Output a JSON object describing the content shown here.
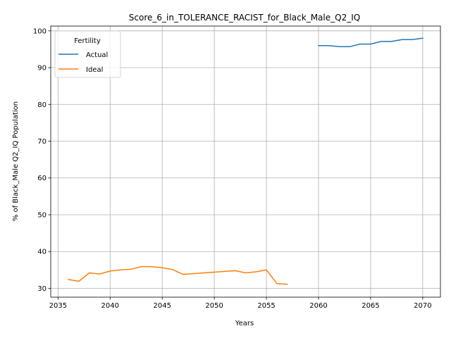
{
  "chart_data": {
    "type": "line",
    "title": "Score_6_in_TOLERANCE_RACIST_for_Black_Male_Q2_IQ",
    "xlabel": "Years",
    "ylabel": "% of Black_Male Q2_IQ Population",
    "xlim": [
      2034.3,
      2071.7
    ],
    "ylim": [
      27.6,
      101.3
    ],
    "xticks": [
      2035,
      2040,
      2045,
      2050,
      2055,
      2060,
      2065,
      2070
    ],
    "yticks": [
      30,
      40,
      50,
      60,
      70,
      80,
      90,
      100
    ],
    "grid": true,
    "legend": {
      "title": "Fertility",
      "placement": "top-left"
    },
    "series": [
      {
        "name": "Actual",
        "color": "#1f77b4",
        "x": [
          2060,
          2061,
          2062,
          2063,
          2064,
          2065,
          2066,
          2067,
          2068,
          2069,
          2070
        ],
        "y": [
          96.0,
          96.0,
          95.7,
          95.7,
          96.4,
          96.4,
          97.1,
          97.1,
          97.6,
          97.6,
          98.0
        ]
      },
      {
        "name": "Ideal",
        "color": "#ff7f0e",
        "x": [
          2036,
          2037,
          2038,
          2039,
          2040,
          2041,
          2042,
          2043,
          2044,
          2045,
          2046,
          2047,
          2048,
          2049,
          2050,
          2051,
          2052,
          2053,
          2054,
          2055,
          2056,
          2057
        ],
        "y": [
          32.4,
          31.9,
          34.2,
          33.9,
          34.7,
          35.0,
          35.2,
          35.9,
          35.9,
          35.6,
          35.1,
          33.8,
          34.0,
          34.2,
          34.4,
          34.6,
          34.8,
          34.2,
          34.5,
          35.0,
          31.3,
          31.1
        ]
      }
    ]
  }
}
